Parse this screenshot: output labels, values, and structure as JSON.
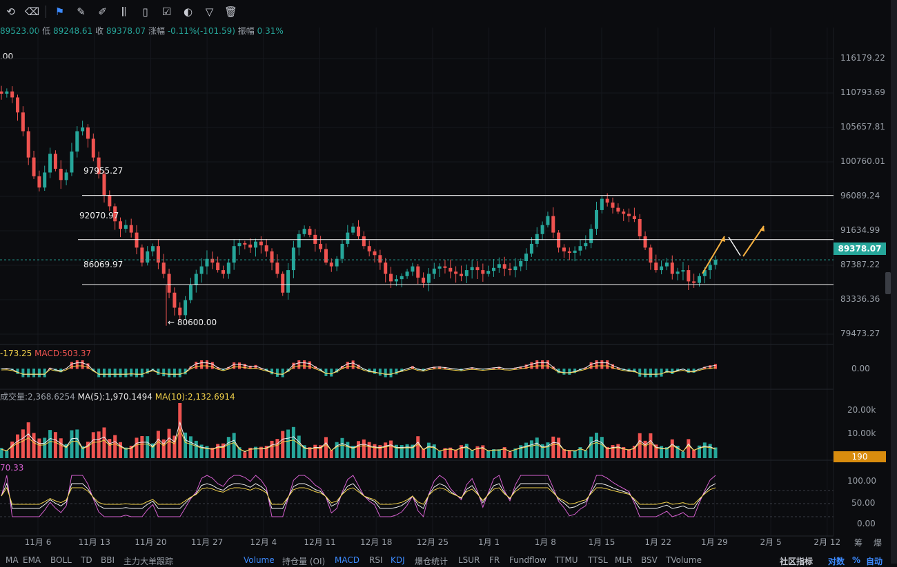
{
  "toolbar": {
    "icons": [
      "undo-icon",
      "clear-drawings-icon",
      "bookmark-icon",
      "ruler-icon",
      "pencil-icon",
      "candles-icon",
      "clipboard-icon",
      "notes-icon",
      "magnet-icon",
      "filter-icon",
      "trash-icon"
    ]
  },
  "ohlc": {
    "open_val": "89523.00",
    "low_label": "低",
    "low_val": "89248.61",
    "close_label": "收",
    "close_val": "89378.07",
    "change_label": "涨幅",
    "change_val": "-0.11%(-101.59)",
    "amp_label": "振幅",
    "amp_val": "0.31%"
  },
  "left_fragment": ".00",
  "levels": [
    {
      "label": "97955.27",
      "price": 97955.27
    },
    {
      "label": "92070.97",
      "price": 92070.97
    },
    {
      "label": "86069.97",
      "price": 86069.97
    }
  ],
  "low_marker": "← 80600.00",
  "price_axis": [
    "116179.22",
    "110793.69",
    "105657.81",
    "100760.01",
    "96089.24",
    "91634.99",
    "87387.22",
    "83336.36",
    "79473.27"
  ],
  "current_price": "89378.07",
  "macd_axis": "0.00",
  "vol_axis": [
    "20.00k",
    "10.00k"
  ],
  "vol_badge": "190",
  "kdj_axis": [
    "100.00",
    "50.00",
    "0.00"
  ],
  "macd_legend": {
    "dea": "-173.25",
    "macd": "MACD:503.37"
  },
  "vol_legend": {
    "vol": "成交量:2,368.6254",
    "ma5": "MA(5):1,970.1494",
    "ma10": "MA(10):2,132.6914"
  },
  "kdj_legend": "70.33",
  "dates": [
    "11月 6",
    "11月 13",
    "11月 20",
    "11月 27",
    "12月 4",
    "12月 11",
    "12月 18",
    "12月 25",
    "1月 1",
    "1月 8",
    "1月 15",
    "1月 22",
    "1月 29",
    "2月 5",
    "2月 12"
  ],
  "right_axis_labels": [
    "筹",
    "爆"
  ],
  "bottom_tabs": [
    {
      "label": "MA",
      "on": false
    },
    {
      "label": "EMA",
      "on": false
    },
    {
      "label": "BOLL",
      "on": false
    },
    {
      "label": "TD",
      "on": false
    },
    {
      "label": "BBI",
      "on": false
    },
    {
      "label": "主力大单跟踪",
      "on": false
    },
    {
      "label": "Volume",
      "on": true
    },
    {
      "label": "持仓量 (OI)",
      "on": false
    },
    {
      "label": "MACD",
      "on": true
    },
    {
      "label": "RSI",
      "on": false
    },
    {
      "label": "KDJ",
      "on": true
    },
    {
      "label": "爆仓统计",
      "on": false
    },
    {
      "label": "LSUR",
      "on": false
    },
    {
      "label": "FR",
      "on": false
    },
    {
      "label": "Fundflow",
      "on": false
    },
    {
      "label": "TTMU",
      "on": false
    },
    {
      "label": "TTSL",
      "on": false
    },
    {
      "label": "MLR",
      "on": false
    },
    {
      "label": "BSV",
      "on": false
    },
    {
      "label": "TVolume",
      "on": false
    }
  ],
  "bottom_right": [
    "社区指标",
    "对数",
    "%",
    "自动"
  ],
  "chart_data": {
    "type": "candlestick",
    "symbol_price": 89378.07,
    "ylim": [
      79473.27,
      116179.22
    ],
    "closes": [
      111500,
      111800,
      111000,
      109000,
      106500,
      103000,
      100500,
      99000,
      101000,
      103500,
      101500,
      100000,
      101000,
      103800,
      106500,
      107000,
      105500,
      103000,
      100800,
      98000,
      96500,
      94500,
      93500,
      94000,
      93000,
      91000,
      89000,
      90500,
      91200,
      89000,
      87500,
      85000,
      83000,
      82000,
      84000,
      86000,
      87500,
      88500,
      89500,
      89000,
      88000,
      87500,
      89000,
      91200,
      91600,
      91400,
      91000,
      91800,
      91300,
      90500,
      89000,
      87500,
      85000,
      88000,
      91000,
      92800,
      93500,
      92700,
      91500,
      90800,
      89000,
      88500,
      89500,
      91500,
      93000,
      93800,
      92500,
      91200,
      90500,
      90000,
      89000,
      87500,
      86500,
      86800,
      87200,
      87800,
      88500,
      87000,
      86300,
      87500,
      88200,
      88500,
      88300,
      87800,
      87500,
      87200,
      88000,
      88400,
      88000,
      87500,
      87900,
      88300,
      88800,
      88200,
      88000,
      88500,
      89200,
      90200,
      91500,
      92800,
      94000,
      95200,
      93000,
      91000,
      90500,
      90300,
      90600,
      91200,
      91600,
      93500,
      96000,
      97500,
      97000,
      96300,
      95800,
      95500,
      95200,
      94800,
      92500,
      91000,
      89000,
      88000,
      88500,
      89000,
      87500,
      87800,
      88000,
      86500,
      86300,
      87200,
      88000,
      88700,
      89378
    ]
  }
}
